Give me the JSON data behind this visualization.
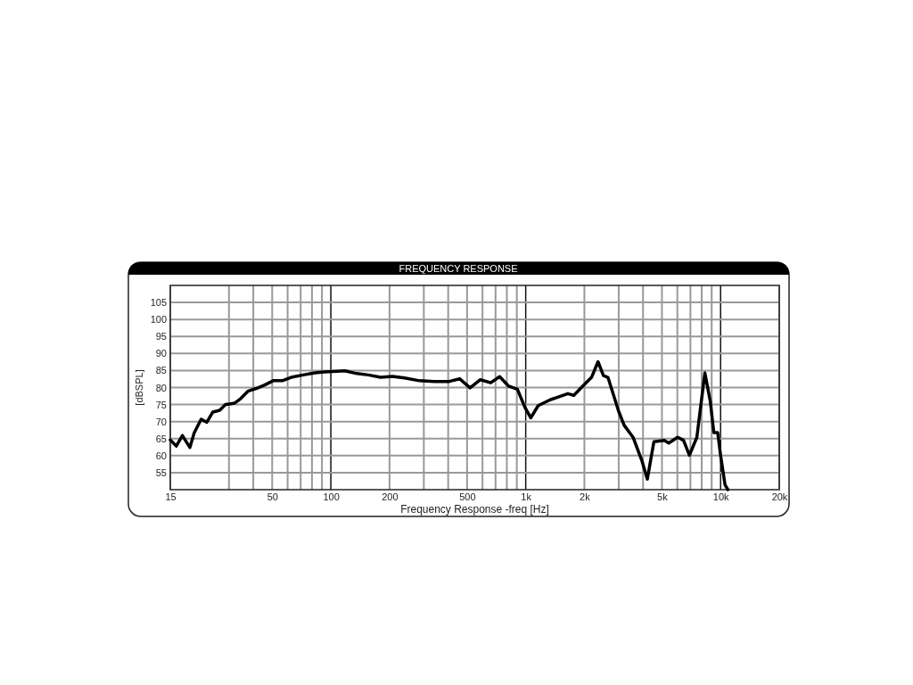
{
  "chart_data": {
    "type": "line",
    "title": "FREQUENCY RESPONSE",
    "xlabel": "Frequency Response -freq [Hz]",
    "ylabel": "[dBSPL]",
    "log": "x",
    "grid": true,
    "line_style": "solid",
    "xlim": [
      15,
      20000
    ],
    "ylim": [
      50,
      110
    ],
    "xticks": [
      15,
      {
        "value": 30,
        "label": null
      },
      {
        "value": 40,
        "label": null
      },
      50,
      {
        "value": 60,
        "label": null
      },
      {
        "value": 70,
        "label": null
      },
      {
        "value": 80,
        "label": null
      },
      {
        "value": 90,
        "label": null
      },
      100,
      200,
      {
        "value": 300,
        "label": null
      },
      {
        "value": 400,
        "label": null
      },
      500,
      {
        "value": 600,
        "label": null
      },
      {
        "value": 700,
        "label": null
      },
      {
        "value": 800,
        "label": null
      },
      {
        "value": 900,
        "label": null
      },
      {
        "value": 1000,
        "label": "1k"
      },
      {
        "value": 2000,
        "label": "2k"
      },
      {
        "value": 3000,
        "label": null
      },
      {
        "value": 4000,
        "label": null
      },
      {
        "value": 5000,
        "label": "5k"
      },
      {
        "value": 6000,
        "label": null
      },
      {
        "value": 7000,
        "label": null
      },
      {
        "value": 8000,
        "label": null
      },
      {
        "value": 9000,
        "label": null
      },
      {
        "value": 10000,
        "label": "10k"
      },
      {
        "value": 20000,
        "label": "20k"
      }
    ],
    "yticks": [
      55,
      60,
      65,
      70,
      75,
      80,
      85,
      90,
      95,
      100,
      105
    ],
    "series": [
      {
        "color": "#000000",
        "x": [
          15,
          16.1,
          17.3,
          18.9,
          19.9,
          21.6,
          23.1,
          24.8,
          26.9,
          28.8,
          32,
          34.4,
          37.5,
          41.7,
          45.5,
          50.6,
          56.3,
          62.6,
          72.1,
          83,
          92.3,
          102.5,
          118,
          136,
          156,
          180,
          207,
          239,
          285,
          340,
          406,
          458,
          518,
          585,
          661,
          735,
          817,
          906,
          990,
          1061,
          1159,
          1334,
          1480,
          1644,
          1765,
          1960,
          2177,
          2350,
          2505,
          2642,
          2987,
          3201,
          3554,
          3952,
          4209,
          4547,
          5141,
          5420,
          6018,
          6450,
          6919,
          7555,
          8305,
          8850,
          9228,
          9660,
          10000,
          10540,
          10900
        ],
        "values": [
          64.6,
          62.8,
          65.9,
          62.4,
          66.7,
          70.7,
          69.8,
          72.8,
          73.3,
          75,
          75.4,
          76.7,
          78.9,
          79.8,
          80.7,
          82,
          82,
          83,
          83.7,
          84.3,
          84.6,
          84.7,
          84.9,
          84.1,
          83.7,
          83,
          83.3,
          82.8,
          82,
          81.8,
          81.8,
          82.6,
          79.9,
          82.3,
          81.4,
          83.2,
          80.4,
          79.5,
          74.2,
          71.1,
          74.7,
          76.4,
          77.3,
          78.2,
          77.7,
          80.4,
          83,
          87.6,
          83.5,
          83,
          73.3,
          68.9,
          65.4,
          58.4,
          53.1,
          64.1,
          64.5,
          63.7,
          65.4,
          64.5,
          60.1,
          65.4,
          84.3,
          76,
          66.8,
          66.8,
          60.1,
          51.4,
          50
        ]
      }
    ]
  }
}
